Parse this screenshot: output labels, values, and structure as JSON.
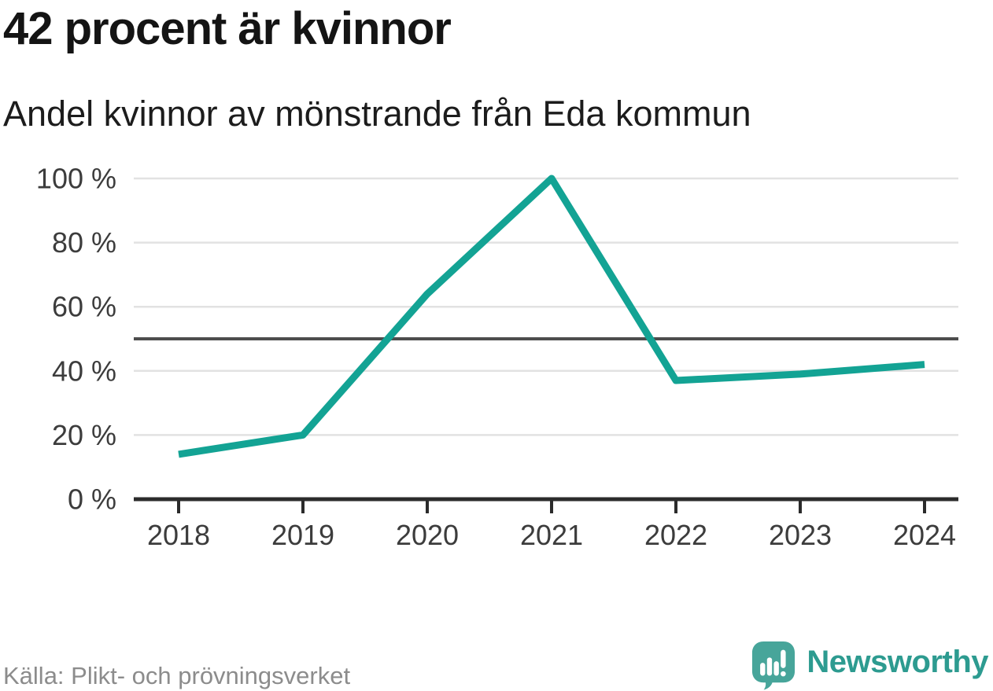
{
  "header": {
    "title": "42 procent är kvinnor",
    "subtitle": "Andel kvinnor av mönstrande från Eda kommun"
  },
  "footer": {
    "source": "Källa: Plikt- och prövningsverket",
    "brand": "Newsworthy",
    "brand_icon_color": "#47a59a",
    "brand_text_color": "#2d9b90"
  },
  "chart_data": {
    "type": "line",
    "title": "42 procent är kvinnor",
    "subtitle": "Andel kvinnor av mönstrande från Eda kommun",
    "categories": [
      "2018",
      "2019",
      "2020",
      "2021",
      "2022",
      "2023",
      "2024"
    ],
    "series": [
      {
        "name": "Andel kvinnor av mönstrande",
        "values": [
          14,
          20,
          64,
          100,
          37,
          39,
          42
        ]
      }
    ],
    "ylim": [
      0,
      100
    ],
    "yticks": [
      0,
      20,
      40,
      60,
      80,
      100
    ],
    "ytick_labels": [
      "0 %",
      "20 %",
      "40 %",
      "60 %",
      "80 %",
      "100 %"
    ],
    "reference_line": 50,
    "grid": "horizontal",
    "legend": "none",
    "line_color": "#13a394",
    "grid_color": "#e2e2e2",
    "reference_line_color": "#4d4d4d",
    "axis_color": "#2b2b2b",
    "tick_label_color": "#3c3c3c"
  }
}
